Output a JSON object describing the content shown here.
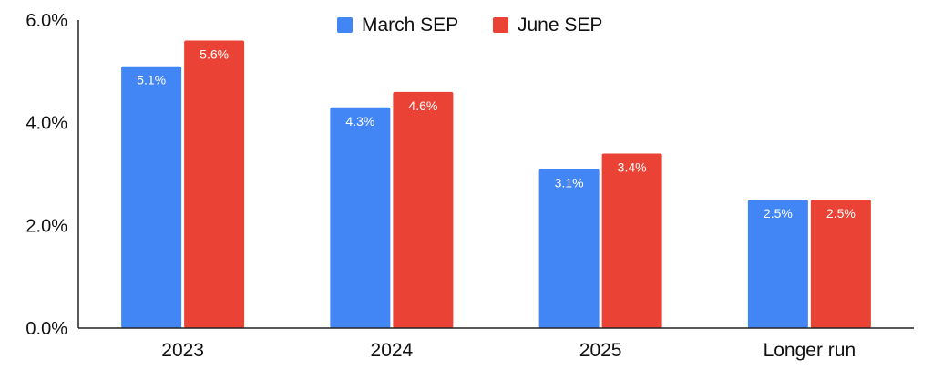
{
  "chart_data": {
    "type": "bar",
    "categories": [
      "2023",
      "2024",
      "2025",
      "Longer run"
    ],
    "series": [
      {
        "name": "March SEP",
        "color": "#4285F4",
        "values": [
          5.1,
          4.3,
          3.1,
          2.5
        ],
        "labels": [
          "5.1%",
          "4.3%",
          "3.1%",
          "2.5%"
        ]
      },
      {
        "name": "June SEP",
        "color": "#EA4335",
        "values": [
          5.6,
          4.6,
          3.4,
          2.5
        ],
        "labels": [
          "5.6%",
          "4.6%",
          "3.4%",
          "2.5%"
        ]
      }
    ],
    "ylim": [
      0,
      6
    ],
    "yticks": [
      0,
      2,
      4,
      6
    ],
    "ytick_labels": [
      "0.0%",
      "2.0%",
      "4.0%",
      "6.0%"
    ],
    "legend_position": "top-center",
    "grid": false
  }
}
